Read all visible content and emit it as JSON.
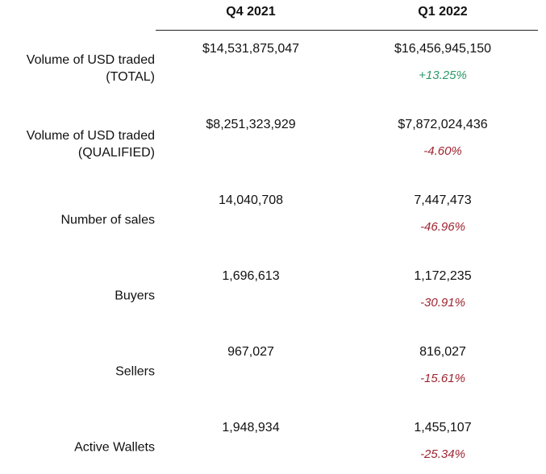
{
  "columns": [
    "Q4 2021",
    "Q1 2022"
  ],
  "colors": {
    "positive": "#2e9a68",
    "negative": "#9e2430"
  },
  "rows": [
    {
      "label_lines": [
        "Volume of USD traded",
        "(TOTAL)"
      ],
      "q4_2021": "$14,531,875,047",
      "q1_2022": "$16,456,945,150",
      "change": "+13.25%",
      "trend": "positive"
    },
    {
      "label_lines": [
        "Volume of USD traded",
        "(QUALIFIED)"
      ],
      "q4_2021": "$8,251,323,929",
      "q1_2022": "$7,872,024,436",
      "change": "-4.60%",
      "trend": "negative"
    },
    {
      "label_lines": [
        "Number of sales"
      ],
      "q4_2021": "14,040,708",
      "q1_2022": "7,447,473",
      "change": "-46.96%",
      "trend": "negative"
    },
    {
      "label_lines": [
        "Buyers"
      ],
      "q4_2021": "1,696,613",
      "q1_2022": "1,172,235",
      "change": "-30.91%",
      "trend": "negative"
    },
    {
      "label_lines": [
        "Sellers"
      ],
      "q4_2021": "967,027",
      "q1_2022": "816,027",
      "change": "-15.61%",
      "trend": "negative"
    },
    {
      "label_lines": [
        "Active Wallets"
      ],
      "q4_2021": "1,948,934",
      "q1_2022": "1,455,107",
      "change": "-25.34%",
      "trend": "negative"
    }
  ]
}
